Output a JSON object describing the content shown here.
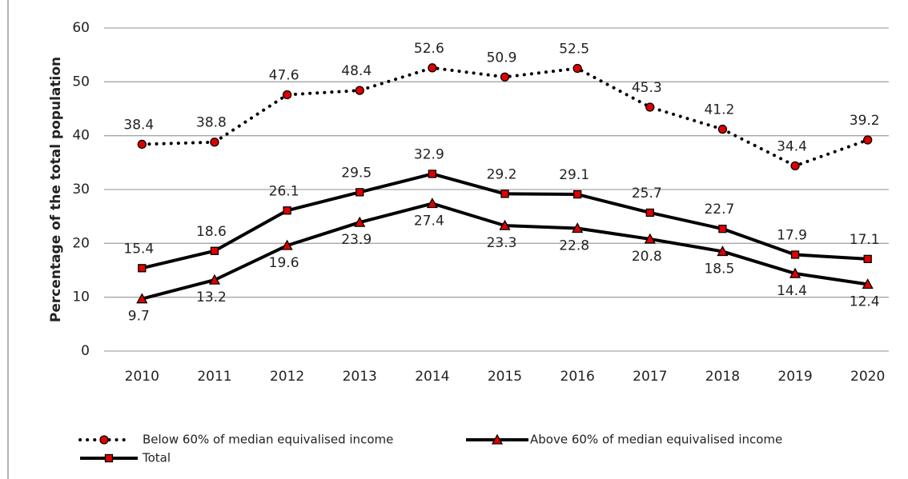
{
  "chart_data": {
    "type": "line",
    "y_label": "Percentage of the total population",
    "categories": [
      "2010",
      "2011",
      "2012",
      "2013",
      "2014",
      "2015",
      "2016",
      "2017",
      "2018",
      "2019",
      "2020"
    ],
    "series": [
      {
        "name": "Below 60% of median equivalised income",
        "color": "#e00000",
        "line_style": "dotted",
        "marker": "circle",
        "label_position": "above",
        "values": [
          38.4,
          38.8,
          47.6,
          48.4,
          52.6,
          50.9,
          52.5,
          45.3,
          41.2,
          34.4,
          39.2
        ]
      },
      {
        "name": "Above 60% of median equivalised income",
        "color": "#e00000",
        "line_style": "solid",
        "marker": "triangle",
        "label_position": "below",
        "values": [
          9.7,
          13.2,
          19.6,
          23.9,
          27.4,
          23.3,
          22.8,
          20.8,
          18.5,
          14.4,
          12.4
        ]
      },
      {
        "name": "Total",
        "color": "#e00000",
        "line_style": "solid",
        "marker": "square",
        "label_position": "above",
        "values": [
          15.4,
          18.6,
          26.1,
          29.5,
          32.9,
          29.2,
          29.1,
          25.7,
          22.7,
          17.9,
          17.1
        ]
      }
    ],
    "ylim": [
      0,
      60
    ],
    "yticks": [
      0,
      10,
      20,
      30,
      40,
      50,
      60
    ],
    "grid": true,
    "legend": "bottom"
  }
}
